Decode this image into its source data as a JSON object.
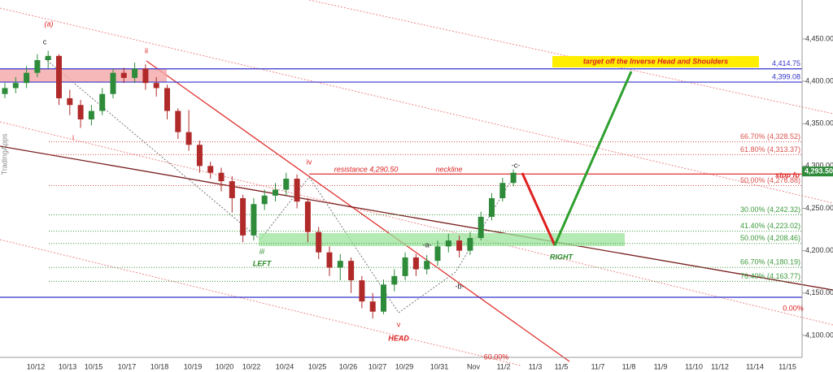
{
  "chart_data": {
    "type": "candlestick",
    "ylim": [
      4074,
      4496
    ],
    "yticks": [
      {
        "value": 4100,
        "label": "4,100.00"
      },
      {
        "value": 4150,
        "label": "4,150.00"
      },
      {
        "value": 4200,
        "label": "4,200.00"
      },
      {
        "value": 4250,
        "label": "4,250.00"
      },
      {
        "value": 4300,
        "label": "4,300.00"
      },
      {
        "value": 4350,
        "label": "4,350.00"
      },
      {
        "value": 4400,
        "label": "4,400.00"
      },
      {
        "value": 4450,
        "label": "4,450.00"
      }
    ],
    "x_labels": [
      "10/12",
      "10/13",
      "10/15",
      "10/17",
      "10/18",
      "10/19",
      "10/20",
      "10/22",
      "10/24",
      "10/25",
      "10/26",
      "10/27",
      "10/29",
      "10/31",
      "Nov",
      "11/2",
      "11/3",
      "11/5",
      "11/7",
      "11/8",
      "11/9",
      "11/10",
      "11/12",
      "11/14",
      "11/15"
    ],
    "up_color": "#2e8b3a",
    "down_color": "#b02a2a",
    "open": [
      4385,
      4392,
      4398,
      4410,
      4425,
      4430,
      4380,
      4372,
      4355,
      4365,
      4385,
      4410,
      4404,
      4415,
      4398,
      4392,
      4365,
      4340,
      4325,
      4300,
      4292,
      4282,
      4262,
      4218,
      4255,
      4265,
      4272,
      4285,
      4258,
      4222,
      4198,
      4180,
      4188,
      4165,
      4140,
      4128,
      4160,
      4170,
      4192,
      4178,
      4188,
      4205,
      4212,
      4200,
      4215,
      4240,
      4262,
      4280
    ],
    "high": [
      4398,
      4405,
      4418,
      4432,
      4436,
      4432,
      4390,
      4378,
      4372,
      4392,
      4415,
      4416,
      4422,
      4420,
      4405,
      4396,
      4368,
      4366,
      4330,
      4305,
      4298,
      4288,
      4266,
      4262,
      4272,
      4280,
      4292,
      4290,
      4262,
      4228,
      4205,
      4196,
      4192,
      4170,
      4150,
      4166,
      4178,
      4198,
      4196,
      4195,
      4212,
      4220,
      4218,
      4222,
      4246,
      4268,
      4286,
      4296
    ],
    "low": [
      4380,
      4386,
      4392,
      4405,
      4415,
      4372,
      4360,
      4345,
      4348,
      4360,
      4380,
      4398,
      4398,
      4390,
      4382,
      4355,
      4332,
      4318,
      4292,
      4285,
      4270,
      4245,
      4210,
      4212,
      4248,
      4258,
      4265,
      4250,
      4210,
      4190,
      4170,
      4165,
      4150,
      4132,
      4120,
      4125,
      4152,
      4165,
      4170,
      4172,
      4182,
      4198,
      4192,
      4195,
      4212,
      4236,
      4258,
      4276
    ],
    "close": [
      4392,
      4398,
      4410,
      4425,
      4430,
      4380,
      4372,
      4355,
      4365,
      4385,
      4410,
      4404,
      4415,
      4398,
      4392,
      4365,
      4340,
      4325,
      4300,
      4292,
      4282,
      4262,
      4218,
      4255,
      4265,
      4272,
      4285,
      4258,
      4222,
      4198,
      4180,
      4188,
      4165,
      4140,
      4128,
      4160,
      4170,
      4192,
      4178,
      4188,
      4205,
      4212,
      4200,
      4215,
      4240,
      4262,
      4280,
      4292
    ],
    "price_levels": [
      {
        "value": 4414.75,
        "label": "4,414.75",
        "color": "#3333cc"
      },
      {
        "value": 4399.08,
        "label": "4,399.08",
        "color": "#3333cc"
      }
    ],
    "support_line": {
      "value": 4145,
      "color": "#3333cc"
    },
    "fib_levels": [
      {
        "value": 4328.52,
        "label": "66.70% (4,328.52)",
        "color": "#d9534f"
      },
      {
        "value": 4313.37,
        "label": "61.80% (4,313.37)",
        "color": "#d9534f"
      },
      {
        "value": 4276.88,
        "label": "50.00% (4,276.88)",
        "color": "#d9534f"
      },
      {
        "value": 4242.32,
        "label": "30.00% (4,242.32)",
        "color": "#3c9a3c"
      },
      {
        "value": 4223.02,
        "label": "41.40% (4,223.02)",
        "color": "#3c9a3c"
      },
      {
        "value": 4208.46,
        "label": "50.00% (4,208.46)",
        "color": "#3c9a3c"
      },
      {
        "value": 4180.19,
        "label": "66.70% (4,180.19)",
        "color": "#3c9a3c"
      },
      {
        "value": 4163.77,
        "label": "76.40% (4,163.77)",
        "color": "#3c9a3c"
      }
    ],
    "resistance": {
      "value": 4290.5,
      "color": "#e03030"
    },
    "last_price": {
      "value": 4293.5,
      "label": "4,293.50",
      "color": "#2e8b3a"
    },
    "annotations": [
      "(a)",
      "c",
      "ii",
      "i",
      "iii",
      "iv",
      "v",
      "-a-",
      "-b-",
      "-c-",
      "LEFT",
      "HEAD",
      "RIGHT",
      "resistance 4,290.50",
      "neckline",
      "target off the Inverse Head and Shoulders",
      "stop fo",
      "0.00%",
      "60.00%",
      "TradingApps"
    ]
  }
}
